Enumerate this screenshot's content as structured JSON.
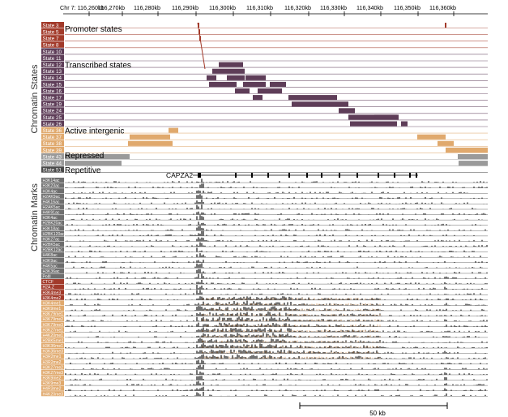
{
  "coordinates": {
    "chromosome_prefix": "Chr 7:",
    "ticks": [
      "116,260kb",
      "116,270kb",
      "116,280kb",
      "116,290kb",
      "116,300kb",
      "116,310kb",
      "116,320kb",
      "116,330kb",
      "116,340kb",
      "116,350kb",
      "116,360kb"
    ]
  },
  "side_labels": {
    "states": "Chromatin States",
    "marks": "Chromatin Marks"
  },
  "state_groups": [
    {
      "label": "Promoter states",
      "color": "#a23a2a"
    },
    {
      "label": "Transcribed states",
      "color": "#5e3d58"
    },
    {
      "label": "Active intergenic",
      "color": "#e0a96d"
    },
    {
      "label": "Repressed",
      "color": "#9a9a9a"
    },
    {
      "label": "Repetitive",
      "color": "#4a4a4a"
    }
  ],
  "states": [
    {
      "label": "State 3",
      "group": 0
    },
    {
      "label": "State 5",
      "group": 0
    },
    {
      "label": "State 7",
      "group": 0
    },
    {
      "label": "State 8",
      "group": 0
    },
    {
      "label": "State 10",
      "group": 1
    },
    {
      "label": "State 11",
      "group": 1
    },
    {
      "label": "State 12",
      "group": 1
    },
    {
      "label": "State 13",
      "group": 1
    },
    {
      "label": "State 14",
      "group": 1
    },
    {
      "label": "State 15",
      "group": 1
    },
    {
      "label": "State 16",
      "group": 1
    },
    {
      "label": "State 17",
      "group": 1
    },
    {
      "label": "State 19",
      "group": 1
    },
    {
      "label": "State 24",
      "group": 1
    },
    {
      "label": "State 25",
      "group": 1
    },
    {
      "label": "State 26",
      "group": 1
    },
    {
      "label": "State 36",
      "group": 2
    },
    {
      "label": "State 37",
      "group": 2
    },
    {
      "label": "State 38",
      "group": 2
    },
    {
      "label": "State 39",
      "group": 2
    },
    {
      "label": "State 43",
      "group": 3
    },
    {
      "label": "State 44",
      "group": 3
    },
    {
      "label": "State 51",
      "group": 4
    }
  ],
  "gene": {
    "name": "CAPZA2"
  },
  "marks": [
    {
      "label": "H3K14ac",
      "color": "#6e6e6e"
    },
    {
      "label": "H3K23ac",
      "color": "#6e6e6e"
    },
    {
      "label": "H3K4ac",
      "color": "#6e6e6e"
    },
    {
      "label": "H2AK9ac",
      "color": "#6e6e6e"
    },
    {
      "label": "H4K16ac",
      "color": "#6e6e6e"
    },
    {
      "label": "H2AK5ac",
      "color": "#6e6e6e"
    },
    {
      "label": "H4K91ac",
      "color": "#6e6e6e"
    },
    {
      "label": "H3K4ac",
      "color": "#6e6e6e"
    },
    {
      "label": "H2BK20ac",
      "color": "#6e6e6e"
    },
    {
      "label": "H3K18ac",
      "color": "#6e6e6e"
    },
    {
      "label": "H2BK120ac",
      "color": "#6e6e6e"
    },
    {
      "label": "H3K27ac",
      "color": "#6e6e6e"
    },
    {
      "label": "H2BK5ac",
      "color": "#6e6e6e"
    },
    {
      "label": "H2BK12ac",
      "color": "#6e6e6e"
    },
    {
      "label": "H4K8ac",
      "color": "#6e6e6e"
    },
    {
      "label": "H3K9ac",
      "color": "#6e6e6e"
    },
    {
      "label": "H4K5ac",
      "color": "#6e6e6e"
    },
    {
      "label": "H3K36ac",
      "color": "#6e6e6e"
    },
    {
      "label": "PolII",
      "color": "#6e6e6e"
    },
    {
      "label": "CTCF",
      "color": "#a23a2a"
    },
    {
      "label": "H2A.Z",
      "color": "#a23a2a"
    },
    {
      "label": "H3K4me3",
      "color": "#a23a2a"
    },
    {
      "label": "H3K4me2",
      "color": "#a23a2a"
    },
    {
      "label": "H3K4me1",
      "color": "#e0a96d"
    },
    {
      "label": "H3K9me1",
      "color": "#e0a96d"
    },
    {
      "label": "H3K79me1",
      "color": "#e0a96d"
    },
    {
      "label": "H3K79me2",
      "color": "#e0a96d"
    },
    {
      "label": "H3K79me3",
      "color": "#e0a96d"
    },
    {
      "label": "H3K27me1",
      "color": "#e0a96d"
    },
    {
      "label": "H4K20me1",
      "color": "#e0a96d"
    },
    {
      "label": "H2BK5me1",
      "color": "#e0a96d"
    },
    {
      "label": "H3K36me1",
      "color": "#e0a96d"
    },
    {
      "label": "H3K36me3",
      "color": "#e0a96d"
    },
    {
      "label": "H3R2me1",
      "color": "#e0a96d"
    },
    {
      "label": "H3R2me2",
      "color": "#e0a96d"
    },
    {
      "label": "H3K27me2",
      "color": "#e0a96d"
    },
    {
      "label": "H3K27me3",
      "color": "#e0a96d"
    },
    {
      "label": "H3K9me2",
      "color": "#e0a96d"
    },
    {
      "label": "H3K9me3",
      "color": "#e0a96d"
    },
    {
      "label": "H4R3me2",
      "color": "#e0a96d"
    },
    {
      "label": "H4K20me3",
      "color": "#e0a96d"
    }
  ],
  "scale_bar": {
    "label": "50 kb"
  }
}
